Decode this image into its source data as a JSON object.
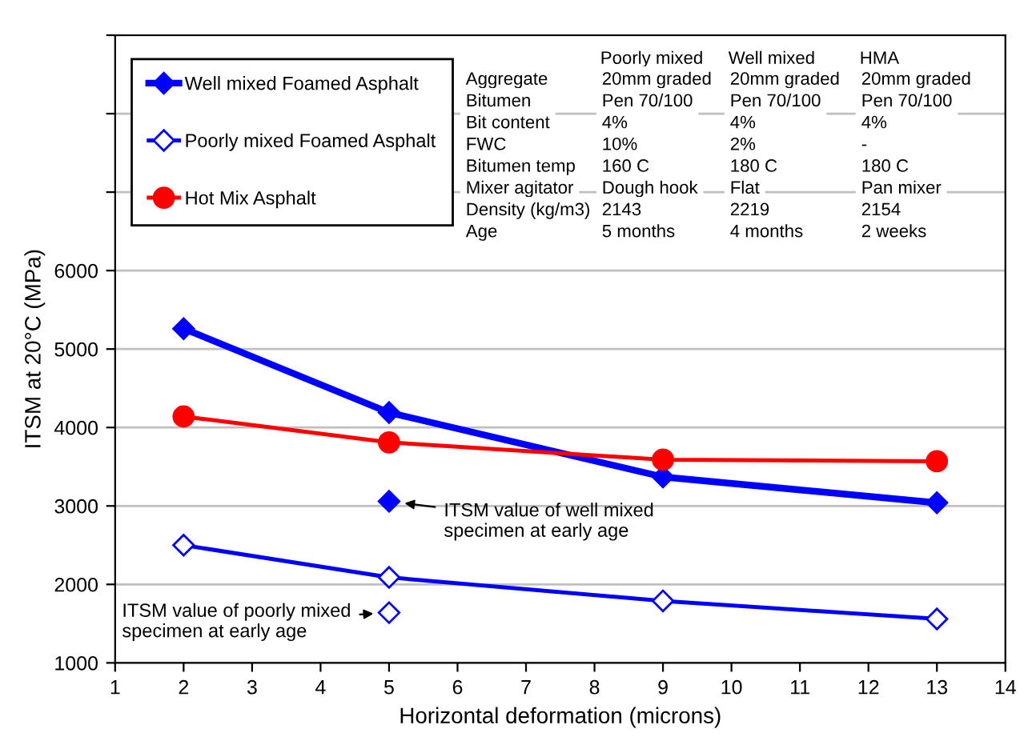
{
  "chart_data": {
    "type": "line",
    "xlabel": "Horizontal deformation (microns)",
    "ylabel": "ITSM at 20°C (MPa)",
    "xlim": [
      1,
      14
    ],
    "xticks": [
      1,
      2,
      3,
      4,
      5,
      6,
      7,
      8,
      9,
      10,
      11,
      12,
      13,
      14
    ],
    "ylim": [
      1000,
      9000
    ],
    "yticks": [
      1000,
      2000,
      3000,
      4000,
      5000,
      6000,
      {
        "value": 7000,
        "label": null
      },
      {
        "value": 8000,
        "label": null
      },
      {
        "value": 9000,
        "label": null
      }
    ],
    "grid": "y",
    "legend": "top left",
    "series": [
      {
        "name": "Well mixed Foamed Asphalt",
        "color": "#0000ff",
        "x": [
          2,
          5,
          9,
          13
        ],
        "values": [
          5260,
          4190,
          3370,
          3040
        ],
        "marker": "diamond",
        "line_style": "solid"
      },
      {
        "name": "Poorly mixed Foamed Asphalt",
        "color": "#0000ff",
        "x": [
          2,
          5,
          9,
          13
        ],
        "values": [
          2500,
          2090,
          1790,
          1560
        ],
        "marker": "diamond",
        "line_style": "solid"
      },
      {
        "name": "Hot Mix Asphalt",
        "color": "#ff0000",
        "x": [
          2,
          5,
          9,
          13
        ],
        "values": [
          4140,
          3810,
          3590,
          3570
        ],
        "marker": "circle",
        "line_style": "solid"
      },
      {
        "type": "scatter",
        "color": "#0000ff",
        "x": [
          5
        ],
        "values": [
          3060
        ],
        "marker": "diamond"
      },
      {
        "type": "scatter",
        "color": "#0000ff",
        "x": [
          5
        ],
        "values": [
          1640
        ],
        "marker": "diamond"
      }
    ],
    "annotations": [
      "Poorly mixed",
      "Well mixed",
      "HMA",
      "Aggregate",
      "20mm graded",
      "20mm graded",
      "20mm graded",
      "Bitumen",
      "Pen 70/100",
      "Pen 70/100",
      "Pen 70/100",
      "Bit content",
      "4%",
      "4%",
      "4%",
      "FWC",
      "10%",
      "2%",
      "-",
      "Bitumen temp",
      "160 C",
      "180 C",
      "180 C",
      "Mixer agitator",
      "Dough hook",
      "Flat",
      "Pan mixer",
      "Density (kg/m3)",
      "2143",
      "2219",
      "2154",
      "Age",
      "5 months",
      "4 months",
      "2 weeks",
      {
        "text": "ITSM value of well mixed\nspecimen at early age",
        "x": 5,
        "y": 3060
      },
      {
        "text": "ITSM value of poorly mixed\nspecimen at early age",
        "x": 5,
        "y": 1640
      }
    ]
  }
}
